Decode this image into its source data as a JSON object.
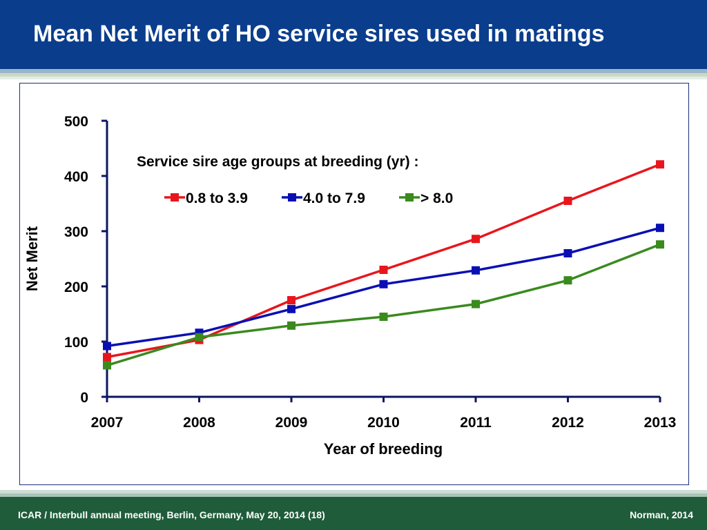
{
  "slide": {
    "title": "Mean Net Merit of HO service sires used in matings",
    "footer_left": "ICAR / Interbull annual meeting, Berlin, Germany, May 20, 2014  (18)",
    "footer_right": "Norman, 2014"
  },
  "colors": {
    "header_bg": "#0a3d8c",
    "footer_bg": "#1f5c3a",
    "axis": "#0b1560"
  },
  "chart_data": {
    "type": "line",
    "title": "",
    "legend_title": "Service sire age groups at breeding (yr) :",
    "xlabel": "Year of breeding",
    "ylabel": "Net Merit",
    "x": [
      2007,
      2008,
      2009,
      2010,
      2011,
      2012,
      2013
    ],
    "x_tick_labels": [
      "2007",
      "2008",
      "2009",
      "2010",
      "2011",
      "2012",
      "2013"
    ],
    "ylim": [
      0,
      500
    ],
    "y_ticks": [
      0,
      100,
      200,
      300,
      400,
      500
    ],
    "y_tick_labels": [
      "0",
      "100",
      "200",
      "300",
      "400",
      "500"
    ],
    "grid": false,
    "legend_position": "top-center",
    "series": [
      {
        "name": "0.8 to 3.9",
        "color": "#e8161c",
        "values": [
          72,
          103,
          175,
          230,
          286,
          355,
          421
        ]
      },
      {
        "name": "4.0 to 7.9",
        "color": "#0a0fb4",
        "values": [
          92,
          116,
          159,
          204,
          229,
          260,
          306
        ]
      },
      {
        "name": "> 8.0",
        "color": "#3a8a1e",
        "values": [
          57,
          108,
          129,
          145,
          168,
          211,
          276
        ]
      }
    ]
  }
}
